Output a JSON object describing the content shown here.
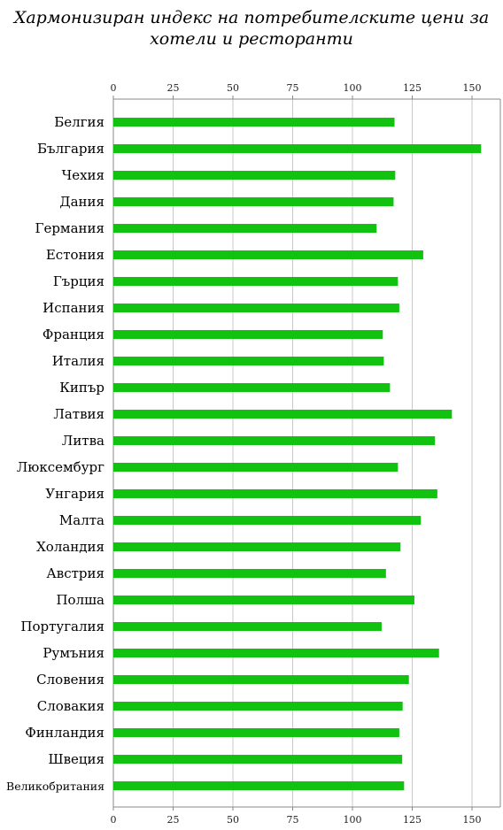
{
  "chart_data": {
    "type": "bar",
    "orientation": "horizontal",
    "title_lines": [
      "Хармонизиран индекс на потребителските цени за",
      "хотели и ресторанти"
    ],
    "categories": [
      "Белгия",
      "България",
      "Чехия",
      "Дания",
      "Германия",
      "Естония",
      "Гърция",
      "Испания",
      "Франция",
      "Италия",
      "Кипър",
      "Латвия",
      "Литва",
      "Люксембург",
      "Унгария",
      "Малта",
      "Холандия",
      "Австрия",
      "Полша",
      "Португалия",
      "Румъния",
      "Словения",
      "Словакия",
      "Финландия",
      "Швеция",
      "Великобритания"
    ],
    "values": [
      117.6,
      153.8,
      117.9,
      117.2,
      110.1,
      129.6,
      119.0,
      119.6,
      112.7,
      113.1,
      115.7,
      141.6,
      134.5,
      119.0,
      135.5,
      128.6,
      120.1,
      114.0,
      125.9,
      112.2,
      136.2,
      123.6,
      121.0,
      119.6,
      120.8,
      121.6
    ],
    "xlim": [
      0,
      160
    ],
    "ticks": [
      0,
      25,
      50,
      75,
      100,
      125,
      150
    ],
    "tick_labels": [
      "0",
      "25",
      "50",
      "75",
      "100",
      "125",
      "150"
    ],
    "axis_top": true,
    "axis_bottom": true,
    "grid": true,
    "legend": "none",
    "colors": {
      "bar": "#11c211",
      "grid": "#c8c8c8",
      "frame": "#8a8a8a"
    }
  }
}
